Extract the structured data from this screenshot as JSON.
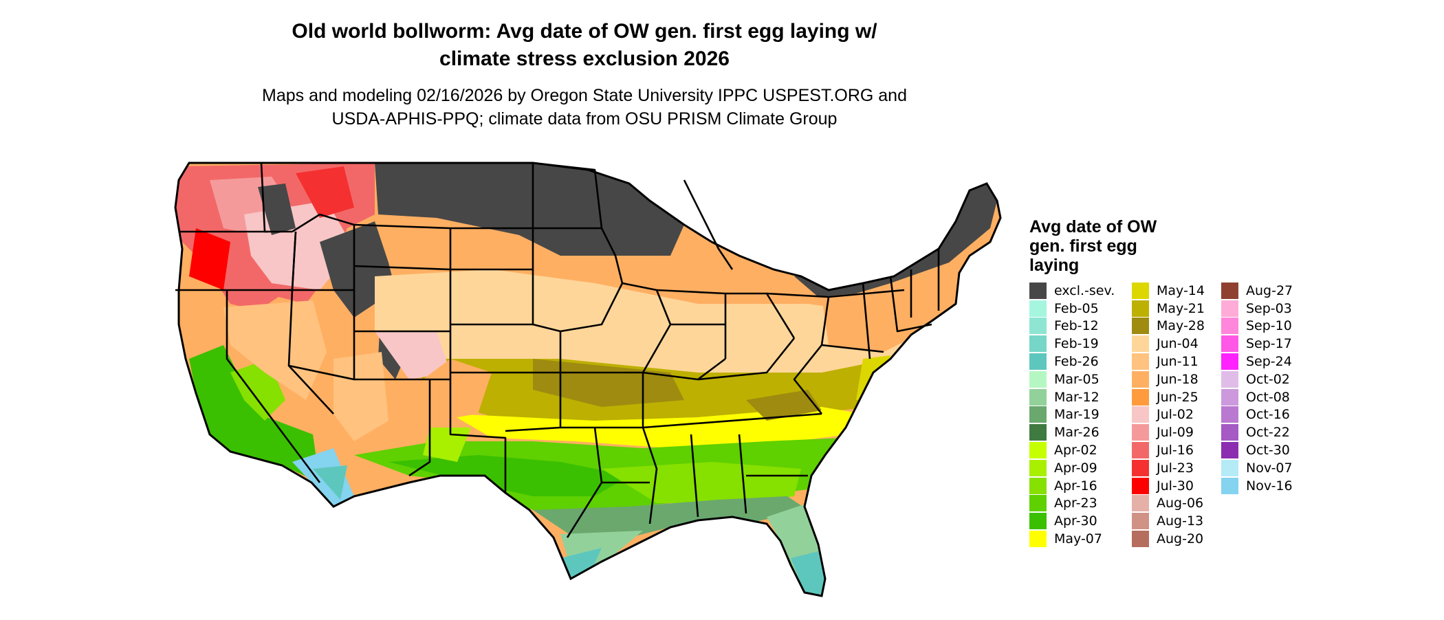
{
  "title_lines": [
    "Old world bollworm: Avg date of OW gen. first egg laying w/",
    "climate stress exclusion 2026"
  ],
  "subtitle_lines": [
    "Maps and modeling 02/16/2026 by Oregon State University IPPC USPEST.ORG and",
    "USDA-APHIS-PPQ; climate data from OSU PRISM Climate Group"
  ],
  "legend": {
    "title_lines": [
      "Avg date of OW",
      "gen. first egg",
      "laying"
    ],
    "items": [
      {
        "label": "excl.-sev.",
        "color": "#474747"
      },
      {
        "label": "Feb-05",
        "color": "#a6f5df"
      },
      {
        "label": "Feb-12",
        "color": "#8ee6d2"
      },
      {
        "label": "Feb-19",
        "color": "#76d6c7"
      },
      {
        "label": "Feb-26",
        "color": "#5ec7bd"
      },
      {
        "label": "Mar-05",
        "color": "#b5f7c2"
      },
      {
        "label": "Mar-12",
        "color": "#93d19b"
      },
      {
        "label": "Mar-19",
        "color": "#6aa86e"
      },
      {
        "label": "Mar-26",
        "color": "#3f7a41"
      },
      {
        "label": "Apr-02",
        "color": "#c5ff00"
      },
      {
        "label": "Apr-09",
        "color": "#a8f000"
      },
      {
        "label": "Apr-16",
        "color": "#86e000"
      },
      {
        "label": "Apr-23",
        "color": "#5fd000"
      },
      {
        "label": "Apr-30",
        "color": "#3ac000"
      },
      {
        "label": "May-07",
        "color": "#ffff00"
      },
      {
        "label": "May-14",
        "color": "#dcd700"
      },
      {
        "label": "May-21",
        "color": "#bdb000"
      },
      {
        "label": "May-28",
        "color": "#9e8b10"
      },
      {
        "label": "Jun-04",
        "color": "#ffd69a"
      },
      {
        "label": "Jun-11",
        "color": "#ffc27f"
      },
      {
        "label": "Jun-18",
        "color": "#ffaf62"
      },
      {
        "label": "Jun-25",
        "color": "#ff9b3c"
      },
      {
        "label": "Jul-02",
        "color": "#f8c6c6"
      },
      {
        "label": "Jul-09",
        "color": "#f59a9a"
      },
      {
        "label": "Jul-16",
        "color": "#f26868"
      },
      {
        "label": "Jul-23",
        "color": "#f53030"
      },
      {
        "label": "Jul-30",
        "color": "#ff0000"
      },
      {
        "label": "Aug-06",
        "color": "#e5b0a8"
      },
      {
        "label": "Aug-13",
        "color": "#cf9285"
      },
      {
        "label": "Aug-20",
        "color": "#b56e5e"
      },
      {
        "label": "Aug-27",
        "color": "#8f4030"
      },
      {
        "label": "Sep-03",
        "color": "#ffabd8"
      },
      {
        "label": "Sep-10",
        "color": "#ff86da"
      },
      {
        "label": "Sep-17",
        "color": "#ff57e6"
      },
      {
        "label": "Sep-24",
        "color": "#ff22ff"
      },
      {
        "label": "Oct-02",
        "color": "#e0bde8"
      },
      {
        "label": "Oct-08",
        "color": "#cc99dd"
      },
      {
        "label": "Oct-16",
        "color": "#b979d1"
      },
      {
        "label": "Oct-22",
        "color": "#a55ac4"
      },
      {
        "label": "Oct-30",
        "color": "#8c2cb0"
      },
      {
        "label": "Nov-07",
        "color": "#b5eaf7"
      },
      {
        "label": "Nov-16",
        "color": "#84d3ef"
      }
    ]
  },
  "colors": {
    "border": "#000000",
    "background": "#ffffff"
  }
}
